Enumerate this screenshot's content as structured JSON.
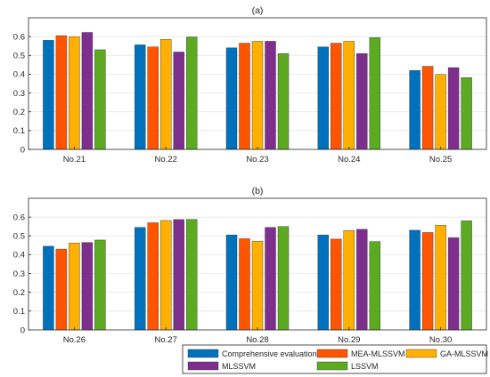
{
  "colors": {
    "series": [
      "#0072BD",
      "#FF5400",
      "#FFB000",
      "#7E2F8E",
      "#5BAA1F"
    ],
    "grid": "#e2e2e2",
    "axis": "#262626"
  },
  "chart_data": [
    {
      "type": "bar",
      "title": "(a)",
      "categories": [
        "No.21",
        "No.22",
        "No.23",
        "No.24",
        "No.25"
      ],
      "ylim": [
        0,
        0.7
      ],
      "yticks": [
        "0",
        "0.1",
        "0.2",
        "0.3",
        "0.4",
        "0.5",
        "0.6"
      ],
      "grid": true,
      "series": [
        {
          "name": "Comprehensive evaluation score",
          "values": [
            0.58,
            0.556,
            0.54,
            0.545,
            0.42
          ]
        },
        {
          "name": "MEA-MLSSVM",
          "values": [
            0.605,
            0.545,
            0.565,
            0.565,
            0.442
          ]
        },
        {
          "name": "GA-MLSSVM",
          "values": [
            0.6,
            0.585,
            0.575,
            0.575,
            0.398
          ]
        },
        {
          "name": "MLSSVM",
          "values": [
            0.622,
            0.518,
            0.575,
            0.51,
            0.435
          ]
        },
        {
          "name": "LSSVM",
          "values": [
            0.53,
            0.598,
            0.51,
            0.595,
            0.382
          ]
        }
      ]
    },
    {
      "type": "bar",
      "title": "(b)",
      "categories": [
        "No.26",
        "No.27",
        "No.28",
        "No.29",
        "No.30"
      ],
      "ylim": [
        0,
        0.7
      ],
      "yticks": [
        "0",
        "0.1",
        "0.2",
        "0.3",
        "0.4",
        "0.5",
        "0.6"
      ],
      "grid": true,
      "legend": "bottom-right",
      "series": [
        {
          "name": "Comprehensive evaluation score",
          "values": [
            0.445,
            0.545,
            0.505,
            0.505,
            0.53
          ]
        },
        {
          "name": "MEA-MLSSVM",
          "values": [
            0.43,
            0.57,
            0.485,
            0.483,
            0.518
          ]
        },
        {
          "name": "GA-MLSSVM",
          "values": [
            0.462,
            0.582,
            0.472,
            0.528,
            0.557
          ]
        },
        {
          "name": "MLSSVM",
          "values": [
            0.465,
            0.587,
            0.545,
            0.535,
            0.49
          ]
        },
        {
          "name": "LSSVM",
          "values": [
            0.478,
            0.588,
            0.55,
            0.47,
            0.58
          ]
        }
      ]
    }
  ]
}
